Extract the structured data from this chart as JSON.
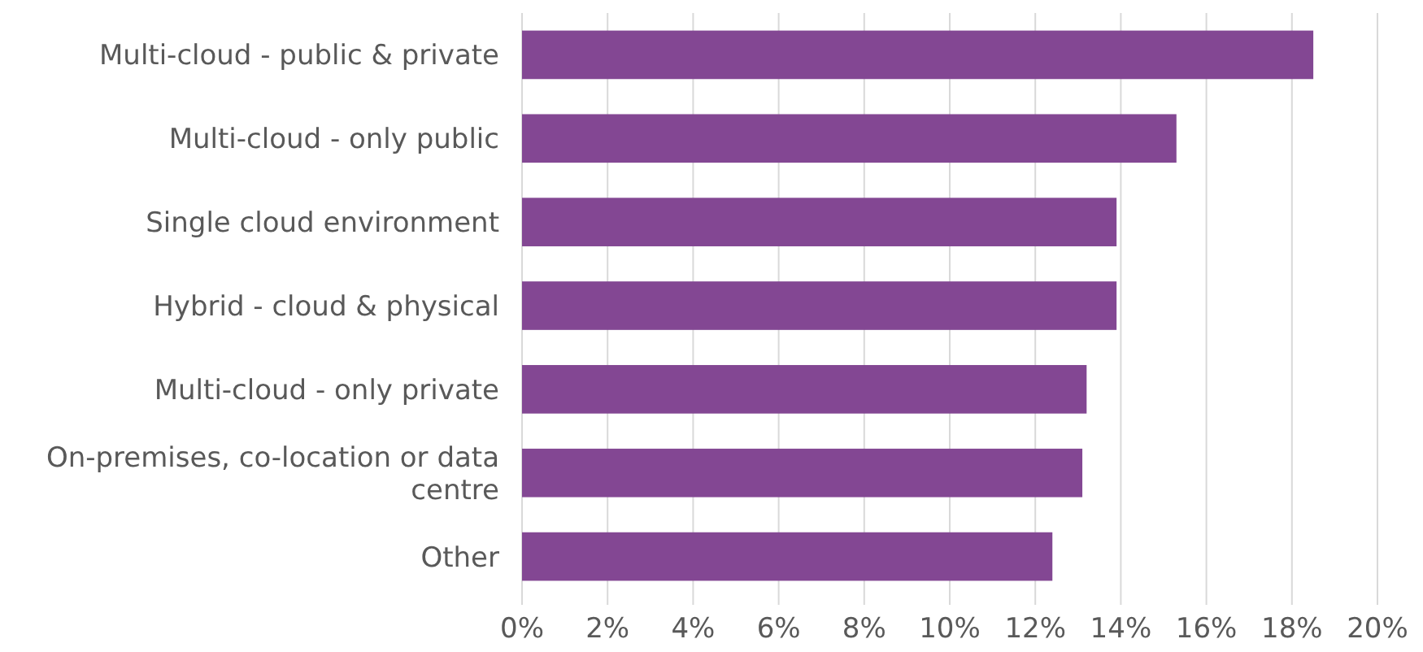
{
  "chart_data": {
    "type": "bar",
    "orientation": "horizontal",
    "categories": [
      "Multi-cloud - public & private",
      "Multi-cloud - only public",
      "Single cloud environment",
      "Hybrid - cloud & physical",
      "Multi-cloud - only private",
      "On-premises, co-location or data centre",
      "Other"
    ],
    "values": [
      18.5,
      15.3,
      13.9,
      13.9,
      13.2,
      13.1,
      12.4
    ],
    "color": "#834793",
    "xlim": [
      0,
      20
    ],
    "xticks": [
      {
        "value": 0,
        "label": "0%"
      },
      {
        "value": 2,
        "label": "2%"
      },
      {
        "value": 4,
        "label": "4%"
      },
      {
        "value": 6,
        "label": "6%"
      },
      {
        "value": 8,
        "label": "8%"
      },
      {
        "value": 10,
        "label": "10%"
      },
      {
        "value": 12,
        "label": "12%"
      },
      {
        "value": 14,
        "label": "14%"
      },
      {
        "value": 16,
        "label": "16%"
      },
      {
        "value": 18,
        "label": "18%"
      },
      {
        "value": 20,
        "label": "20%"
      }
    ],
    "grid": "x"
  }
}
